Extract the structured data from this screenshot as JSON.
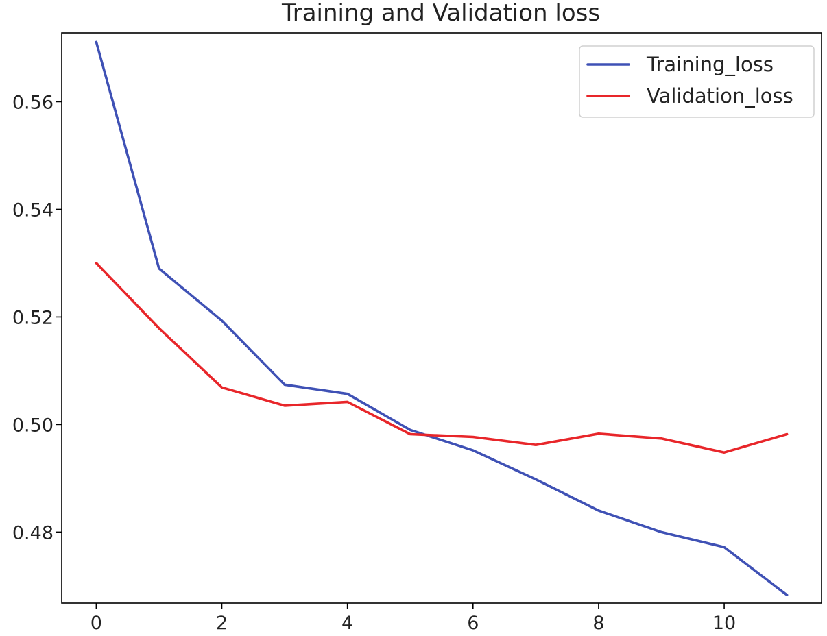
{
  "chart_data": {
    "type": "line",
    "title": "Training and Validation loss",
    "xlabel": "",
    "ylabel": "",
    "x": [
      0,
      1,
      2,
      3,
      4,
      5,
      6,
      7,
      8,
      9,
      10,
      11
    ],
    "xlim": [
      -0.55,
      11.55
    ],
    "ylim": [
      0.4668,
      0.5728
    ],
    "xticks": [
      0,
      2,
      4,
      6,
      8,
      10
    ],
    "xtick_labels": [
      "0",
      "2",
      "4",
      "6",
      "8",
      "10"
    ],
    "yticks": [
      0.48,
      0.5,
      0.52,
      0.54,
      0.56
    ],
    "ytick_labels": [
      "0.48",
      "0.50",
      "0.52",
      "0.54",
      "0.56"
    ],
    "grid": false,
    "legend_position": "top-right",
    "series": [
      {
        "name": "Training_loss",
        "color": "#3f51b5",
        "values": [
          0.5711,
          0.529,
          0.5193,
          0.5074,
          0.5057,
          0.499,
          0.4952,
          0.4898,
          0.484,
          0.48,
          0.4772,
          0.4683
        ]
      },
      {
        "name": "Validation_loss",
        "color": "#e8262a",
        "values": [
          0.53,
          0.5179,
          0.5069,
          0.5035,
          0.5042,
          0.4982,
          0.4977,
          0.4962,
          0.4983,
          0.4974,
          0.4948,
          0.4982
        ]
      }
    ]
  }
}
